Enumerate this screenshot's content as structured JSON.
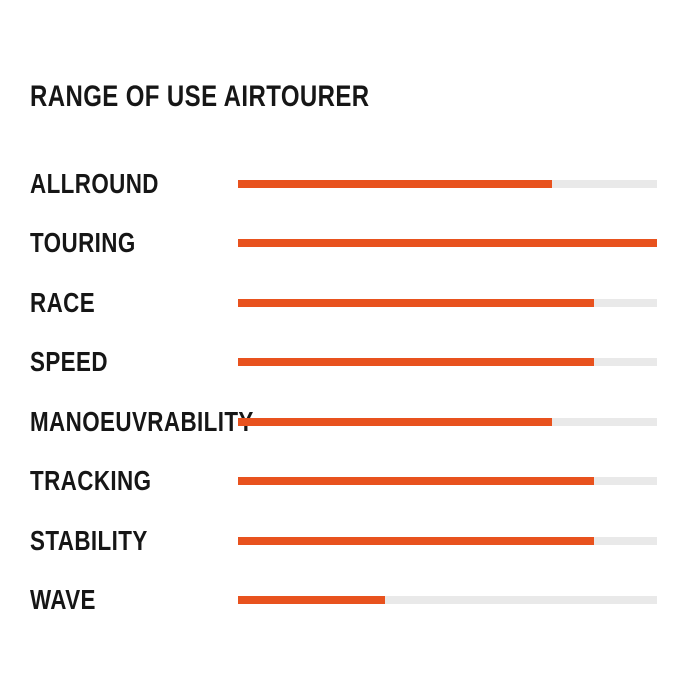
{
  "title": "RANGE OF USE AIRTOURER",
  "colors": {
    "bar_fill": "#e8521e",
    "bar_track": "#e9e9e9",
    "text": "#161616",
    "background": "#ffffff"
  },
  "chart_data": {
    "type": "bar",
    "orientation": "horizontal",
    "title": "RANGE OF USE AIRTOURER",
    "categories": [
      "ALLROUND",
      "TOURING",
      "RACE",
      "SPEED",
      "MANOEUVRABILITY",
      "TRACKING",
      "STABILITY",
      "WAVE"
    ],
    "values": [
      75,
      100,
      85,
      85,
      75,
      85,
      85,
      35
    ],
    "value_unit": "percent_of_track",
    "xlim": [
      0,
      100
    ],
    "xlabel": "",
    "ylabel": "",
    "grid": false,
    "legend": false,
    "value_labels_shown": false
  }
}
